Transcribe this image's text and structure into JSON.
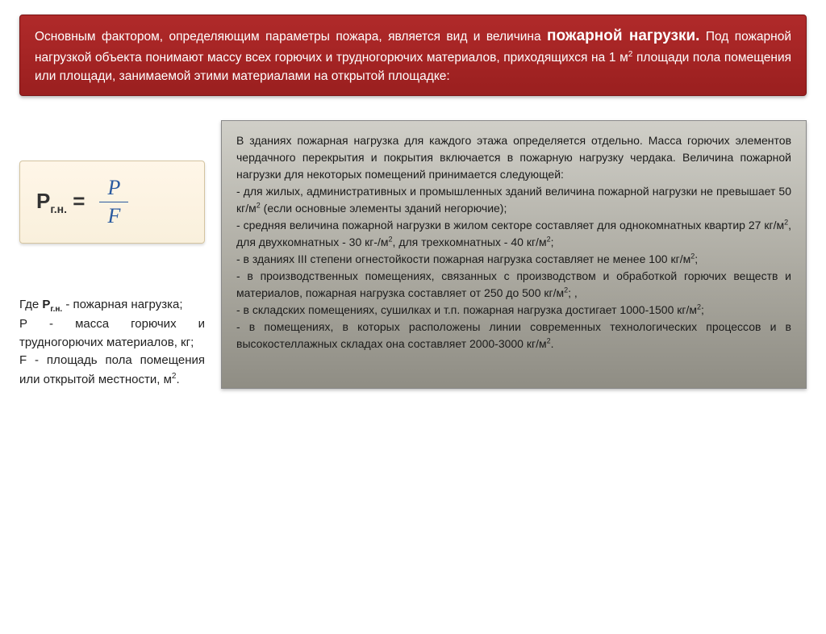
{
  "header": {
    "text_before_bold": "Основным фактором, определяющим параметры пожара, является вид и величина ",
    "bold_term": "пожарной нагрузки.",
    "text_after_bold": " Под пожарной нагрузкой объекта понимают массу всех горючих и трудногорючих материалов, приходящихся на 1 м",
    "sup": "2",
    "text_tail": " площади пола помещения или площади, занимаемой этими материалами на открытой площадке:"
  },
  "formula": {
    "label_main": "Р",
    "label_sub": "г.н.",
    "eq": " = ",
    "numerator": "P",
    "denominator": "F"
  },
  "where": {
    "line1_a": "Где ",
    "line1_b_bold": "Р",
    "line1_b_sub": "г.н.",
    "line1_c": " - пожарная нагрузка;",
    "line2": "Р - масса горючих и трудногорючих материалов, кг;",
    "line3_a": "F - площадь пола помещения или открытой местности, м",
    "line3_sup": "2",
    "line3_b": "."
  },
  "right": {
    "intro": "В зданиях пожарная нагрузка для каждого этажа определяется отдельно. Масса горючих элементов чердачного перекрытия и покрытия включается в пожарную нагрузку чердака. Величина пожарной нагрузки для некоторых помещений принимается следующей:",
    "i1_a": "- для жилых, административных и промышленных зданий величина пожарной нагрузки не превышает 50 кг/м",
    "i1_b": " (если основные элементы зданий негорючие);",
    "i2_a": "- средняя величина пожарной нагрузки в жилом секторе составляет для однокомнатных квартир 27 кг/м",
    "i2_b": ", для двухкомнатных - 30 кг-/м",
    "i2_c": ", для трехкомнатных - 40 кг/м",
    "i2_d": ";",
    "i3_a": "- в зданиях III степени огнестойкости пожарная нагрузка составляет не менее 100 кг/м",
    "i3_b": ";",
    "i4_a": "- в производственных помещениях, связанных с производством и обработкой горючих веществ и материалов, пожарная нагрузка составляет от 250 до 500 кг/м",
    "i4_b": "; ,",
    "i5_a": "- в складских помещениях, сушилках и т.п. пожарная нагрузка достигает 1000-1500 кг/м",
    "i5_b": ";",
    "i6_a": "- в помещениях, в которых расположены линии современных технологических процессов и в высокостеллажных складах она составляет 2000-3000 кг/м",
    "i6_b": ".",
    "sup": "2"
  },
  "style": {
    "header_bg_top": "#b02a2a",
    "header_bg_bottom": "#9a1f1f",
    "formula_bg": "#fff6e8",
    "formula_color": "#2a5aa0",
    "right_bg_top": "#d0cfc8",
    "right_bg_bottom": "#8f8d84"
  }
}
